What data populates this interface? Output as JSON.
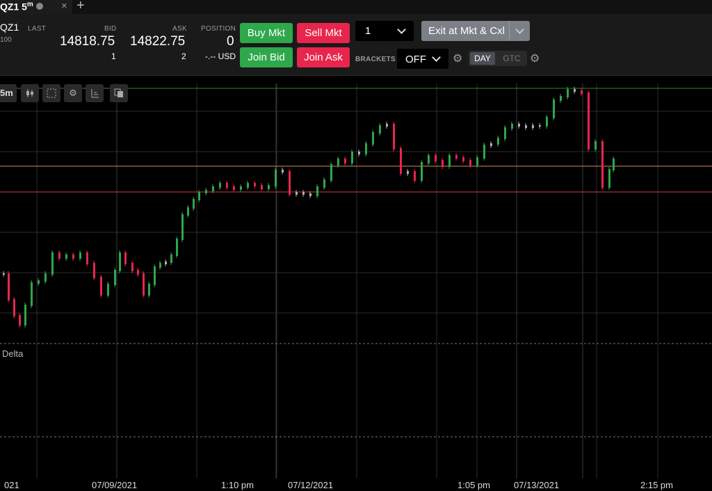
{
  "tab": {
    "title": "QZ1 5",
    "interval_sup": "m",
    "close": "×",
    "add": "+"
  },
  "instrument": {
    "symbol": "QZ1",
    "multiplier": "100"
  },
  "quote": {
    "last_label": "LAST",
    "bid_label": "BID",
    "bid": "14818.75",
    "bid_size": "1",
    "ask_label": "ASK",
    "ask": "14822.75",
    "ask_size": "2",
    "position_label": "POSITION",
    "position": "0",
    "position_pnl": "-.-- USD"
  },
  "buttons": {
    "buy_mkt": "Buy Mkt",
    "sell_mkt": "Sell Mkt",
    "join_bid": "Join Bid",
    "join_ask": "Join Ask",
    "exit": "Exit at Mkt & Cxl"
  },
  "quantity": "1",
  "brackets": {
    "label": "BRACKETS",
    "value": "OFF"
  },
  "tif": {
    "day": "DAY",
    "gtc": "GTC"
  },
  "chart_tools": {
    "interval": "5m",
    "icons": [
      "candlestick-icon",
      "crosshair-icon",
      "settings-icon",
      "drawing-icon",
      "copy-icon"
    ]
  },
  "chart": {
    "colors": {
      "up": "#2ea84a",
      "down": "#e8254c",
      "flat": "#b0b0b0",
      "grid": "#2b2b2b"
    },
    "x_axis_labels": [
      "021",
      "07/09/2021",
      "1:10 pm",
      "07/12/2021",
      "1:05 pm",
      "07/13/2021",
      "2:15 pm"
    ],
    "indicator_label": "Delta"
  }
}
